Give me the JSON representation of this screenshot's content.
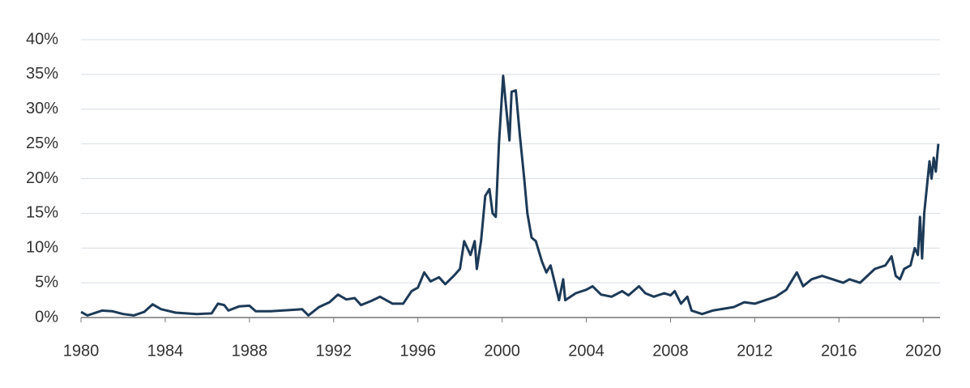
{
  "chart_data": {
    "type": "line",
    "x": [
      1980,
      1980.3,
      1981,
      1981.5,
      1982,
      1982.5,
      1983,
      1983.4,
      1983.8,
      1984.5,
      1985.5,
      1986.2,
      1986.5,
      1986.8,
      1987,
      1987.5,
      1988,
      1988.3,
      1989,
      1990,
      1990.5,
      1990.8,
      1991.3,
      1991.8,
      1992.2,
      1992.6,
      1993,
      1993.3,
      1993.8,
      1994.2,
      1994.8,
      1995.3,
      1995.7,
      1996,
      1996.3,
      1996.6,
      1997,
      1997.3,
      1997.7,
      1998,
      1998.2,
      1998.5,
      1998.7,
      1998.8,
      1999,
      1999.2,
      1999.4,
      1999.55,
      1999.7,
      1999.85,
      2000.05,
      2000.2,
      2000.35,
      2000.45,
      2000.65,
      2000.85,
      2001.05,
      2001.2,
      2001.4,
      2001.6,
      2001.9,
      2002.1,
      2002.3,
      2002.5,
      2002.7,
      2002.9,
      2003,
      2003.5,
      2004,
      2004.3,
      2004.7,
      2005.2,
      2005.7,
      2006,
      2006.5,
      2006.8,
      2007.2,
      2007.7,
      2008,
      2008.2,
      2008.5,
      2008.8,
      2009,
      2009.5,
      2010,
      2011,
      2011.5,
      2012,
      2012.5,
      2013,
      2013.5,
      2014,
      2014.3,
      2014.7,
      2015.2,
      2015.7,
      2016.2,
      2016.5,
      2017,
      2017.7,
      2018.2,
      2018.5,
      2018.7,
      2018.9,
      2019.1,
      2019.4,
      2019.6,
      2019.75,
      2019.85,
      2019.95,
      2020.05,
      2020.2,
      2020.3,
      2020.4,
      2020.5,
      2020.6,
      2020.72
    ],
    "series": [
      {
        "color": "#1d3a57",
        "values": [
          0.8,
          0.3,
          1.0,
          0.9,
          0.5,
          0.3,
          0.8,
          1.9,
          1.2,
          0.7,
          0.5,
          0.6,
          2.0,
          1.8,
          1.0,
          1.6,
          1.7,
          0.9,
          0.9,
          1.1,
          1.2,
          0.3,
          1.5,
          2.2,
          3.3,
          2.6,
          2.8,
          1.8,
          2.4,
          3.0,
          2.0,
          2.0,
          3.8,
          4.3,
          6.5,
          5.2,
          5.8,
          4.8,
          6.0,
          7.0,
          11.0,
          9.0,
          11.0,
          7.0,
          11.0,
          17.5,
          18.5,
          15.0,
          14.5,
          25.0,
          34.8,
          30.0,
          25.5,
          32.5,
          32.7,
          26.0,
          20.0,
          15.0,
          11.5,
          11.0,
          8.0,
          6.5,
          7.5,
          5.0,
          2.5,
          5.5,
          2.5,
          3.5,
          4.0,
          4.5,
          3.3,
          3.0,
          3.8,
          3.2,
          4.5,
          3.5,
          3.0,
          3.5,
          3.2,
          3.8,
          2.0,
          3.0,
          1.0,
          0.5,
          1.0,
          1.5,
          2.2,
          2.0,
          2.5,
          3.0,
          4.0,
          6.5,
          4.5,
          5.5,
          6.0,
          5.5,
          5.0,
          5.5,
          5.0,
          7.0,
          7.5,
          8.8,
          6.0,
          5.5,
          7.0,
          7.5,
          10.0,
          9.0,
          14.5,
          8.5,
          15.0,
          19.5,
          22.5,
          20.0,
          23.0,
          21.0,
          25.0
        ]
      }
    ],
    "xlim": [
      1980,
      2020.8
    ],
    "xticks": [
      1980,
      1984,
      1988,
      1992,
      1996,
      2000,
      2004,
      2008,
      2012,
      2016,
      2020
    ],
    "ylim": [
      0,
      40
    ],
    "yticks": [
      {
        "value": 0,
        "label": "0%"
      },
      {
        "value": 5,
        "label": "5%"
      },
      {
        "value": 10,
        "label": "10%"
      },
      {
        "value": 15,
        "label": "15%"
      },
      {
        "value": 20,
        "label": "20%"
      },
      {
        "value": 25,
        "label": "25%"
      },
      {
        "value": 30,
        "label": "30%"
      },
      {
        "value": 35,
        "label": "35%"
      },
      {
        "value": 40,
        "label": "40%"
      }
    ],
    "grid": true
  }
}
